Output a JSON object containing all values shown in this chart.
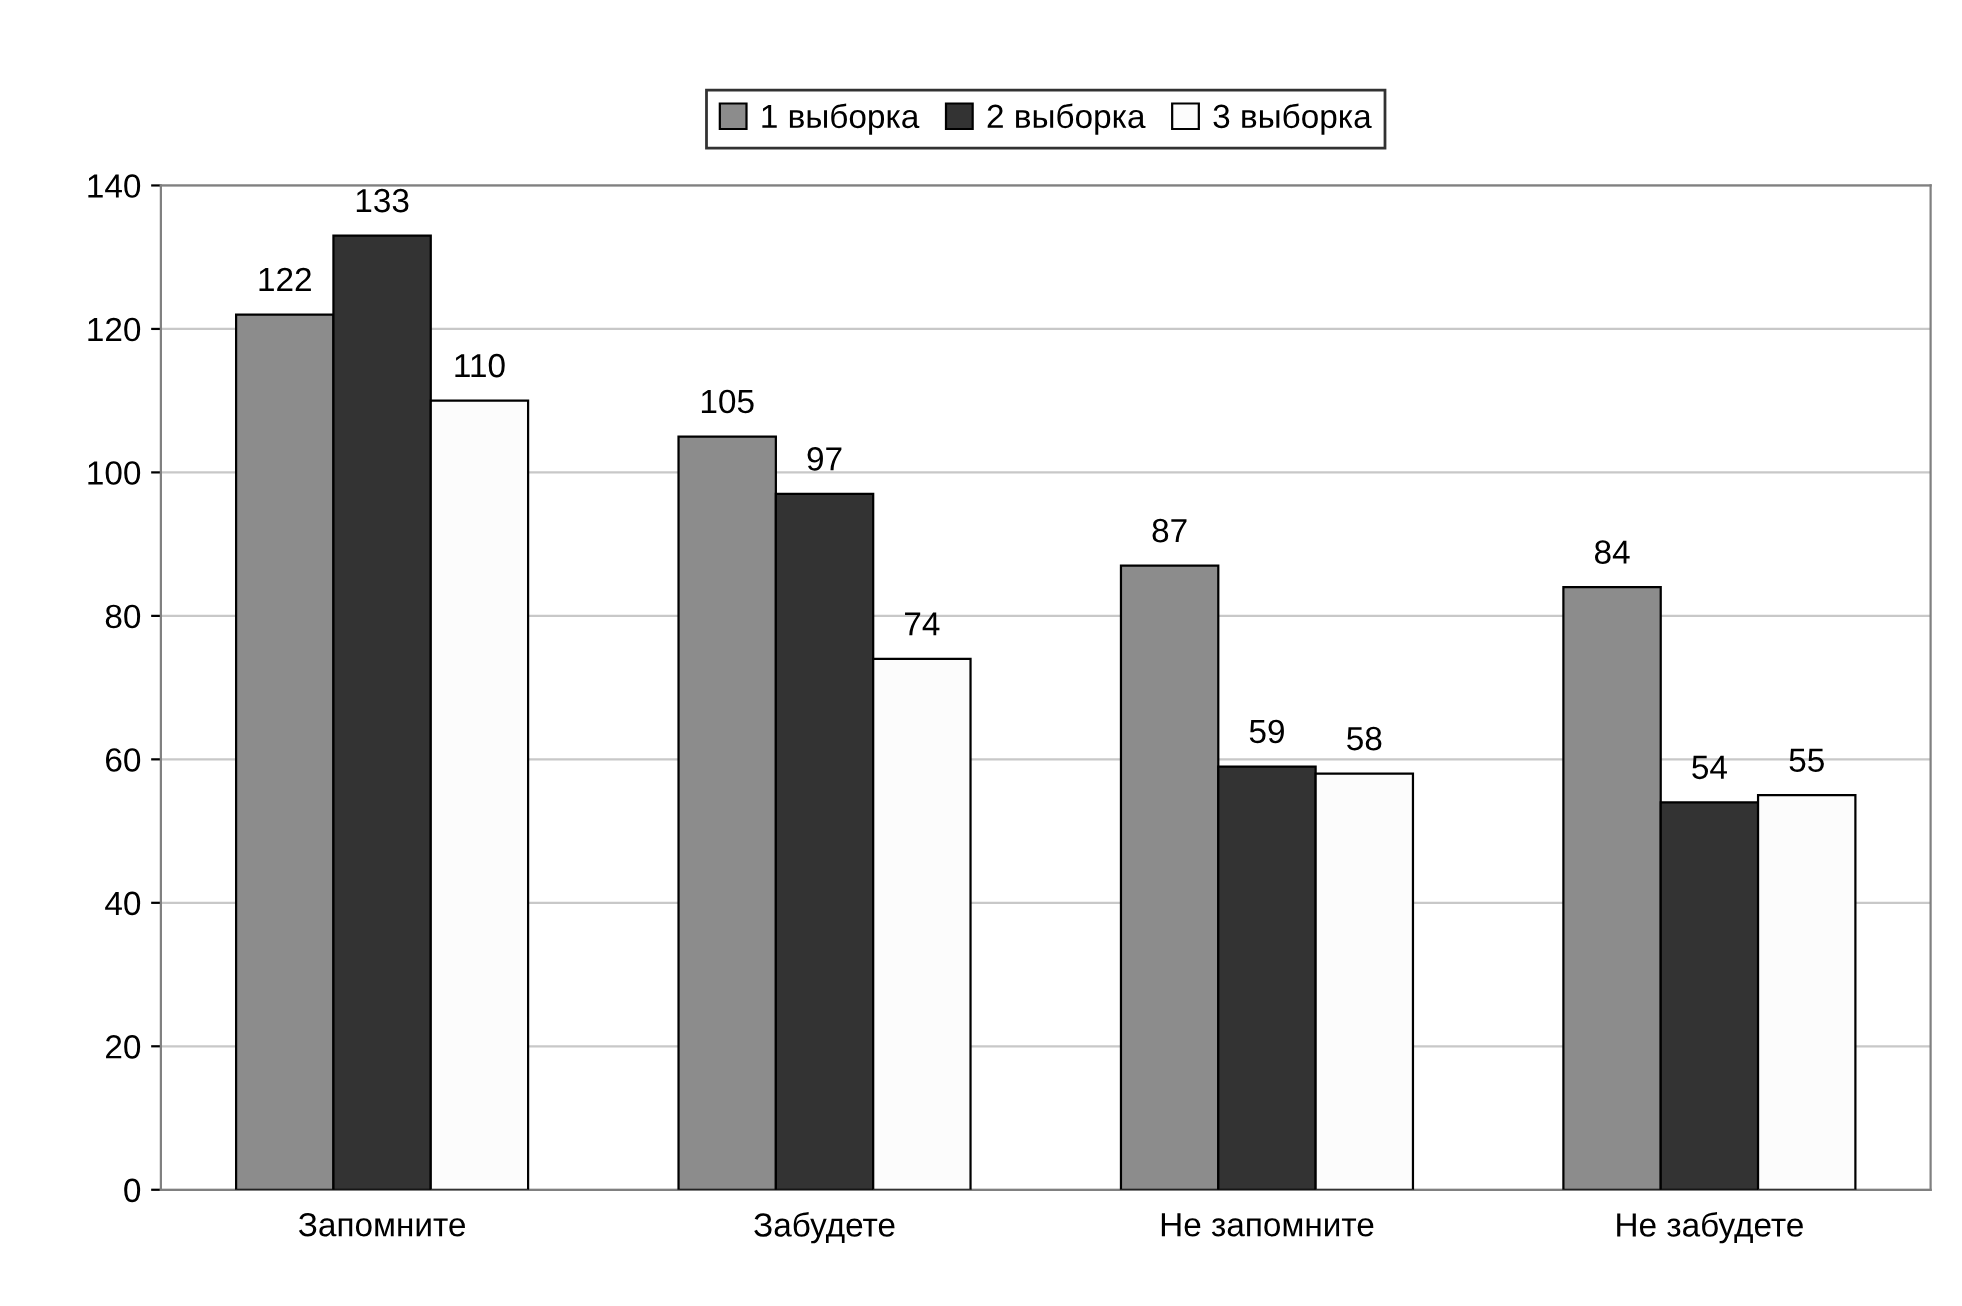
{
  "chart_data": {
    "type": "bar",
    "categories": [
      "Запомните",
      "Забудете",
      "Не запомните",
      "Не забудете"
    ],
    "series": [
      {
        "name": "1 выборка",
        "color": "#8c8c8c",
        "values": [
          122,
          105,
          87,
          84
        ]
      },
      {
        "name": "2 выборка",
        "color": "#333333",
        "values": [
          133,
          97,
          59,
          54
        ]
      },
      {
        "name": "3 выборка",
        "color": "#fcfcfc",
        "values": [
          110,
          74,
          58,
          55
        ]
      }
    ],
    "ylim": [
      0,
      140
    ],
    "yticks": [
      0,
      20,
      40,
      60,
      80,
      100,
      120,
      140
    ],
    "grid": "y",
    "legend": "top",
    "data_labels": true
  }
}
